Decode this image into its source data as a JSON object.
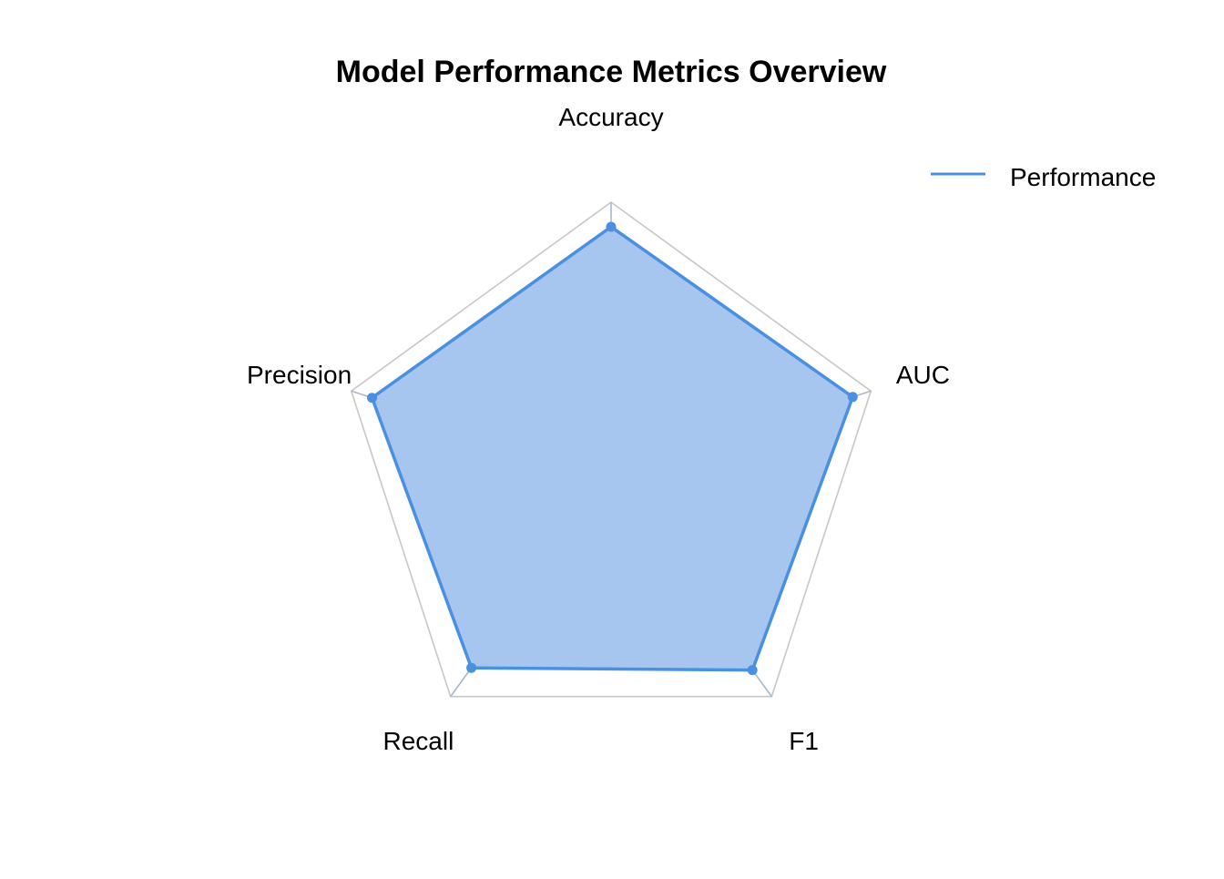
{
  "chart_data": {
    "type": "radar",
    "title": "Model Performance Metrics Overview",
    "axes": [
      "Accuracy",
      "AUC",
      "F1",
      "Recall",
      "Precision"
    ],
    "series": [
      {
        "name": "Performance",
        "values": [
          0.91,
          0.93,
          0.88,
          0.87,
          0.92
        ],
        "color": "#4a90e2"
      }
    ],
    "range": [
      0,
      1
    ],
    "grid_levels": [
      0.2,
      0.4,
      0.6,
      0.8,
      1.0
    ],
    "grid": true,
    "legend_position": "top-right"
  },
  "colors": {
    "series_line": "#4a90e2",
    "series_fill": "#a6c6ef",
    "grid_outer": "#c7c7c7",
    "grid_inner": "#a9b7cb"
  }
}
